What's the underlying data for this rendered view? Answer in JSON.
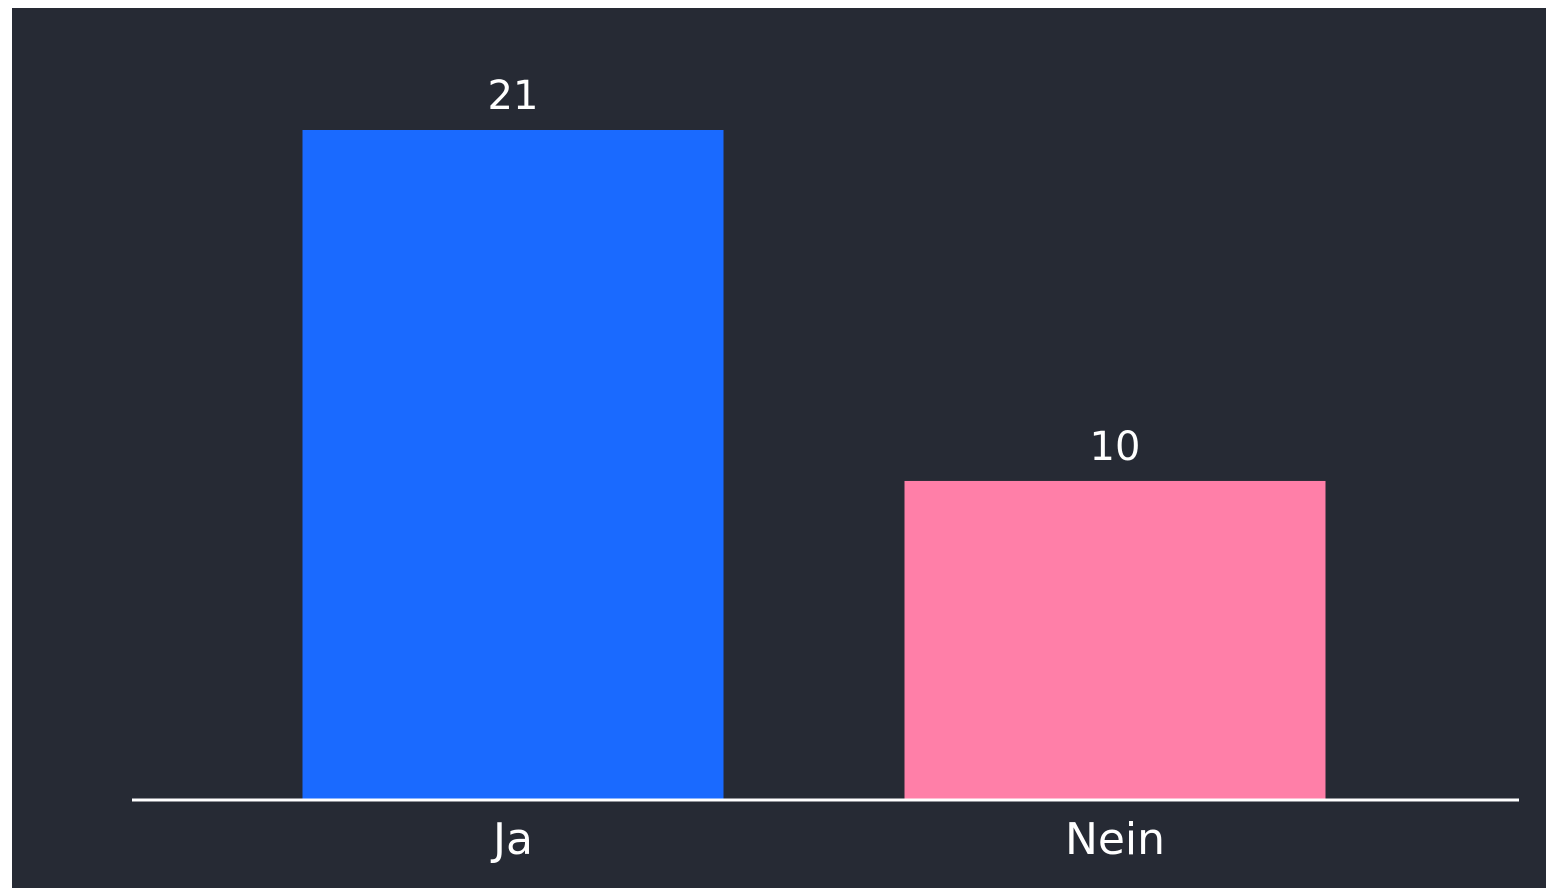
{
  "chart_data": {
    "type": "bar",
    "categories": [
      "Ja",
      "Nein"
    ],
    "values": [
      21,
      10
    ],
    "colors": [
      "#1a6aff",
      "#ff7fa8"
    ]
  }
}
